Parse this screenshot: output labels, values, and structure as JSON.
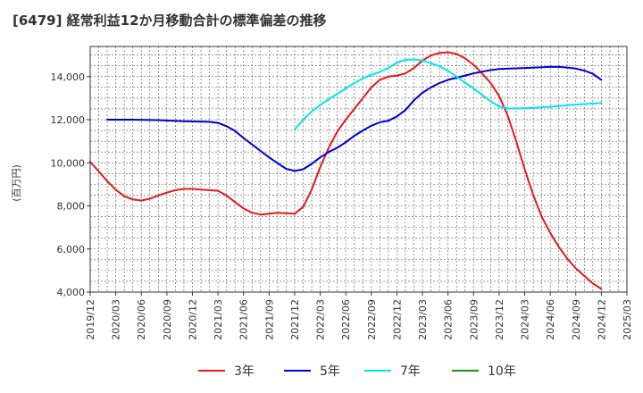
{
  "chart_data": {
    "type": "line",
    "title": "[6479]  経常利益12か月移動合計の標準偏差の推移",
    "ylabel": "(百万円)",
    "xlabel": "",
    "ylim": [
      4000,
      15400
    ],
    "yticks": [
      4000,
      6000,
      8000,
      10000,
      12000,
      14000
    ],
    "ytick_labels": [
      "4,000",
      "6,000",
      "8,000",
      "10,000",
      "12,000",
      "14,000"
    ],
    "xlim": [
      "2019/12",
      "2025/03"
    ],
    "xtick_labels": [
      "2019/12",
      "2020/03",
      "2020/06",
      "2020/09",
      "2020/12",
      "2021/03",
      "2021/06",
      "2021/09",
      "2021/12",
      "2022/03",
      "2022/06",
      "2022/09",
      "2022/12",
      "2023/03",
      "2023/06",
      "2023/09",
      "2023/12",
      "2024/03",
      "2024/06",
      "2024/09",
      "2024/12",
      "2025/03"
    ],
    "grid": true,
    "legend_position": "bottom",
    "series": [
      {
        "name": "3年",
        "color": "#e31a1c",
        "points": [
          [
            "2019/12",
            10050
          ],
          [
            "2020/01",
            9600
          ],
          [
            "2020/02",
            9150
          ],
          [
            "2020/03",
            8750
          ],
          [
            "2020/04",
            8450
          ],
          [
            "2020/05",
            8300
          ],
          [
            "2020/06",
            8250
          ],
          [
            "2020/07",
            8330
          ],
          [
            "2020/08",
            8480
          ],
          [
            "2020/09",
            8620
          ],
          [
            "2020/10",
            8730
          ],
          [
            "2020/11",
            8790
          ],
          [
            "2020/12",
            8790
          ],
          [
            "2021/01",
            8760
          ],
          [
            "2021/02",
            8730
          ],
          [
            "2021/03",
            8700
          ],
          [
            "2021/04",
            8480
          ],
          [
            "2021/05",
            8180
          ],
          [
            "2021/06",
            7880
          ],
          [
            "2021/07",
            7680
          ],
          [
            "2021/08",
            7600
          ],
          [
            "2021/09",
            7640
          ],
          [
            "2021/10",
            7680
          ],
          [
            "2021/11",
            7660
          ],
          [
            "2021/12",
            7630
          ],
          [
            "2022/01",
            7950
          ],
          [
            "2022/02",
            8750
          ],
          [
            "2022/03",
            9800
          ],
          [
            "2022/04",
            10700
          ],
          [
            "2022/05",
            11450
          ],
          [
            "2022/06",
            12000
          ],
          [
            "2022/07",
            12500
          ],
          [
            "2022/08",
            13000
          ],
          [
            "2022/09",
            13500
          ],
          [
            "2022/10",
            13850
          ],
          [
            "2022/11",
            14000
          ],
          [
            "2022/12",
            14050
          ],
          [
            "2022/13",
            14150
          ],
          [
            "2023/02",
            14400
          ],
          [
            "2023/03",
            14750
          ],
          [
            "2023/04",
            14980
          ],
          [
            "2023/05",
            15100
          ],
          [
            "2023/06",
            15130
          ],
          [
            "2023/07",
            15050
          ],
          [
            "2023/08",
            14850
          ],
          [
            "2023/09",
            14550
          ],
          [
            "2023/10",
            14150
          ],
          [
            "2023/11",
            13700
          ],
          [
            "2023/12",
            13100
          ],
          [
            "2024/01",
            12200
          ],
          [
            "2024/02",
            11000
          ],
          [
            "2024/03",
            9700
          ],
          [
            "2024/04",
            8500
          ],
          [
            "2024/05",
            7500
          ],
          [
            "2024/06",
            6750
          ],
          [
            "2024/07",
            6100
          ],
          [
            "2024/08",
            5550
          ],
          [
            "2024/09",
            5100
          ],
          [
            "2024/10",
            4750
          ],
          [
            "2024/11",
            4400
          ],
          [
            "2024/12",
            4150
          ]
        ]
      },
      {
        "name": "5年",
        "color": "#0000cc",
        "points": [
          [
            "2020/02",
            12000
          ],
          [
            "2020/05",
            12000
          ],
          [
            "2020/08",
            11980
          ],
          [
            "2020/11",
            11930
          ],
          [
            "2021/02",
            11900
          ],
          [
            "2021/03",
            11850
          ],
          [
            "2021/04",
            11700
          ],
          [
            "2021/05",
            11480
          ],
          [
            "2021/06",
            11150
          ],
          [
            "2021/07",
            10850
          ],
          [
            "2021/08",
            10550
          ],
          [
            "2021/09",
            10250
          ],
          [
            "2021/10",
            9980
          ],
          [
            "2021/11",
            9720
          ],
          [
            "2021/12",
            9620
          ],
          [
            "2022/01",
            9700
          ],
          [
            "2022/02",
            9950
          ],
          [
            "2022/03",
            10250
          ],
          [
            "2022/04",
            10500
          ],
          [
            "2022/05",
            10700
          ],
          [
            "2022/06",
            10950
          ],
          [
            "2022/07",
            11250
          ],
          [
            "2022/08",
            11500
          ],
          [
            "2022/09",
            11720
          ],
          [
            "2022/10",
            11880
          ],
          [
            "2022/11",
            11950
          ],
          [
            "2022/12",
            12150
          ],
          [
            "2023/01",
            12450
          ],
          [
            "2023/02",
            12900
          ],
          [
            "2023/03",
            13250
          ],
          [
            "2023/04",
            13500
          ],
          [
            "2023/05",
            13700
          ],
          [
            "2023/06",
            13850
          ],
          [
            "2023/07",
            13950
          ],
          [
            "2023/08",
            14050
          ],
          [
            "2023/09",
            14150
          ],
          [
            "2023/10",
            14230
          ],
          [
            "2023/11",
            14300
          ],
          [
            "2023/12",
            14350
          ],
          [
            "2024/03",
            14400
          ],
          [
            "2024/06",
            14450
          ],
          [
            "2024/07",
            14450
          ],
          [
            "2024/08",
            14420
          ],
          [
            "2024/09",
            14370
          ],
          [
            "2024/10",
            14280
          ],
          [
            "2024/11",
            14130
          ],
          [
            "2024/12",
            13850
          ]
        ]
      },
      {
        "name": "7年",
        "color": "#00e5ee",
        "points": [
          [
            "2021/12",
            11550
          ],
          [
            "2022/01",
            12000
          ],
          [
            "2022/02",
            12380
          ],
          [
            "2022/03",
            12680
          ],
          [
            "2022/04",
            12950
          ],
          [
            "2022/05",
            13200
          ],
          [
            "2022/06",
            13450
          ],
          [
            "2022/07",
            13700
          ],
          [
            "2022/08",
            13920
          ],
          [
            "2022/09",
            14080
          ],
          [
            "2022/10",
            14220
          ],
          [
            "2022/11",
            14400
          ],
          [
            "2022/12",
            14650
          ],
          [
            "2023/01",
            14780
          ],
          [
            "2023/02",
            14800
          ],
          [
            "2023/03",
            14750
          ],
          [
            "2023/04",
            14620
          ],
          [
            "2023/05",
            14480
          ],
          [
            "2023/06",
            14270
          ],
          [
            "2023/07",
            14000
          ],
          [
            "2023/08",
            13720
          ],
          [
            "2023/09",
            13450
          ],
          [
            "2023/10",
            13150
          ],
          [
            "2023/11",
            12850
          ],
          [
            "2023/12",
            12620
          ],
          [
            "2024/01",
            12520
          ],
          [
            "2024/03",
            12530
          ],
          [
            "2024/06",
            12600
          ],
          [
            "2024/09",
            12700
          ],
          [
            "2024/12",
            12780
          ]
        ]
      },
      {
        "name": "10年",
        "color": "#228b22",
        "points": []
      }
    ]
  }
}
